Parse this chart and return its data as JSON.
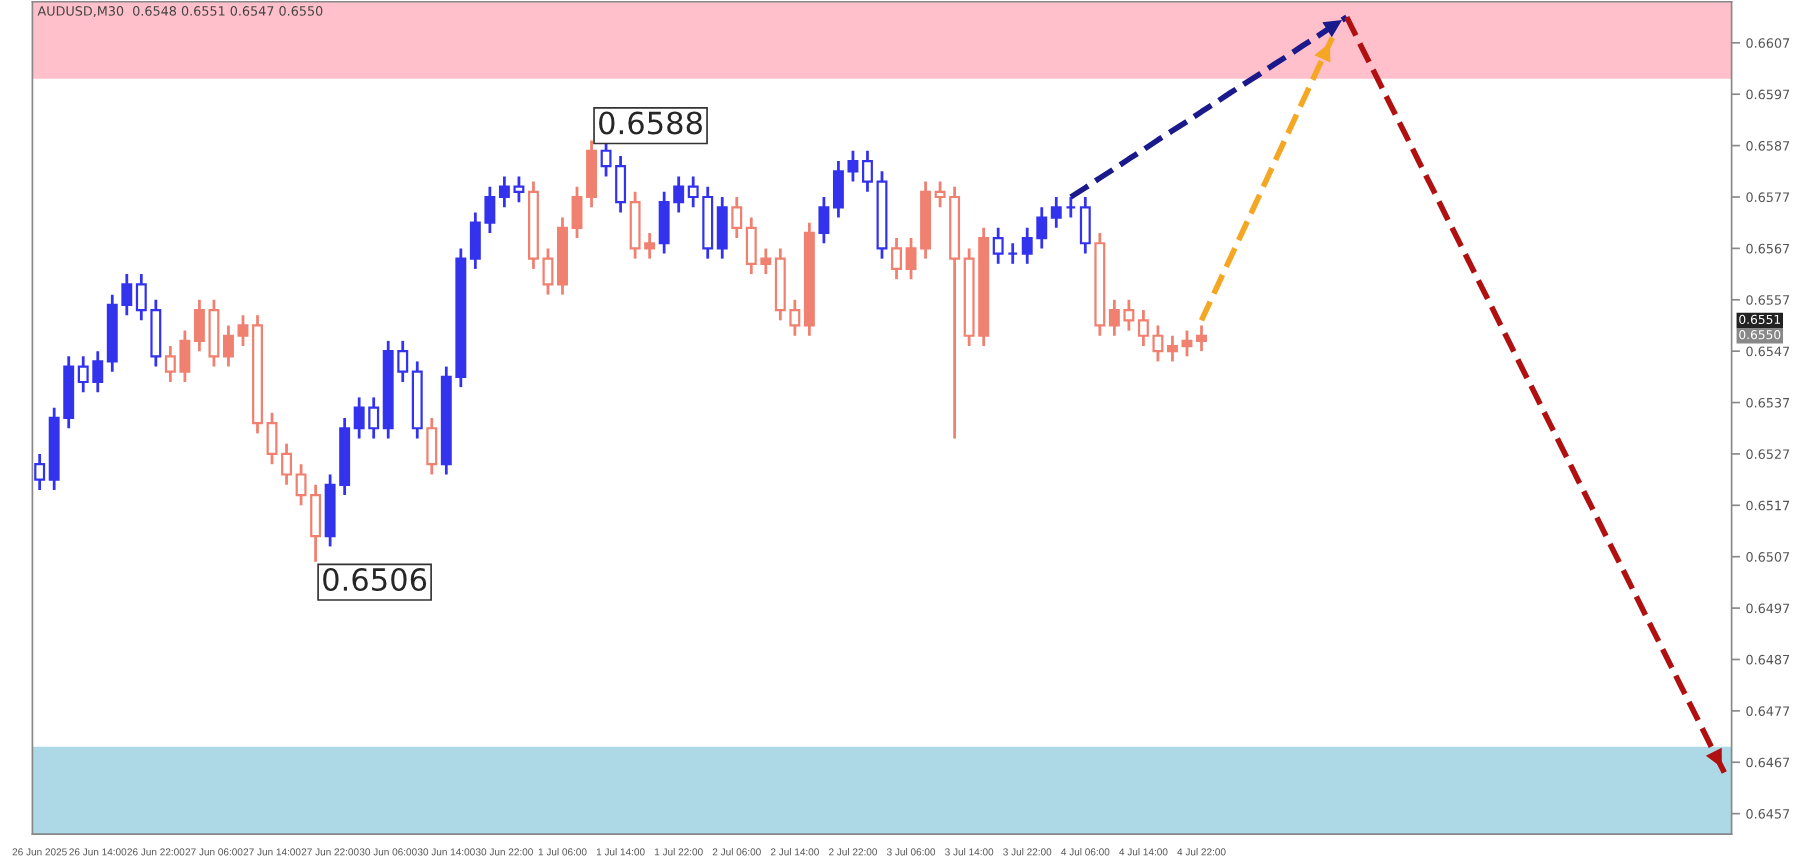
{
  "chart_data": {
    "type": "candlestick",
    "title": "AUDUSD,M30  0.6548 0.6551 0.6547 0.6550",
    "categories": [
      "26 Jun 2025",
      null,
      null,
      null,
      "26 Jun 14:00",
      null,
      null,
      null,
      "26 Jun 22:00",
      null,
      null,
      null,
      "27 Jun 06:00",
      null,
      null,
      null,
      "27 Jun 14:00",
      null,
      null,
      null,
      "27 Jun 22:00",
      null,
      null,
      null,
      "30 Jun 06:00",
      null,
      null,
      null,
      "30 Jun 14:00",
      null,
      null,
      null,
      "30 Jun 22:00",
      null,
      null,
      null,
      "1 Jul 06:00",
      null,
      null,
      null,
      "1 Jul 14:00",
      null,
      null,
      null,
      "1 Jul 22:00",
      null,
      null,
      null,
      "2 Jul 06:00",
      null,
      null,
      null,
      "2 Jul 14:00",
      null,
      null,
      null,
      "2 Jul 22:00",
      null,
      null,
      null,
      "3 Jul 06:00",
      null,
      null,
      null,
      "3 Jul 14:00",
      null,
      null,
      null,
      "3 Jul 22:00",
      null,
      null,
      null,
      "4 Jul 06:00",
      null,
      null,
      null,
      "4 Jul 14:00",
      null,
      null,
      null,
      "4 Jul 22:00",
      null,
      null,
      null,
      null,
      null,
      null,
      null,
      null,
      null,
      null,
      null,
      null,
      null,
      null,
      null,
      null,
      null,
      null,
      null,
      null,
      null,
      null,
      null,
      null,
      null,
      null,
      null,
      null,
      null,
      null,
      null,
      null,
      null,
      null,
      null,
      null
    ],
    "ylim": [
      0.6453,
      0.6615
    ],
    "yticks": [
      0.6607,
      0.6597,
      0.6587,
      0.6577,
      0.6567,
      0.6557,
      0.6547,
      0.6537,
      0.6527,
      0.6517,
      0.6507,
      0.6497,
      0.6487,
      0.6477,
      0.6467,
      0.6457
    ],
    "grid": false,
    "bands": [
      {
        "axis": "y",
        "from": 0.66,
        "to": 0.6615,
        "color": "#ffc0cb"
      },
      {
        "axis": "y",
        "from": 0.6453,
        "to": 0.647,
        "color": "#add8e6"
      }
    ],
    "annotations": [
      "0.6588",
      "0.6506",
      "0.6551",
      "0.6550"
    ],
    "ohlc": [
      [
        0.6525,
        0.6527,
        0.652,
        0.6522
      ],
      [
        0.6522,
        0.6536,
        0.652,
        0.6534
      ],
      [
        0.6534,
        0.6546,
        0.6532,
        0.6544
      ],
      [
        0.6544,
        0.6546,
        0.6539,
        0.6541
      ],
      [
        0.6541,
        0.6547,
        0.6539,
        0.6545
      ],
      [
        0.6545,
        0.6558,
        0.6543,
        0.6556
      ],
      [
        0.6556,
        0.6562,
        0.6554,
        0.656
      ],
      [
        0.656,
        0.6562,
        0.6553,
        0.6555
      ],
      [
        0.6555,
        0.6557,
        0.6544,
        0.6546
      ],
      [
        0.6546,
        0.6548,
        0.6541,
        0.6543
      ],
      [
        0.6543,
        0.6551,
        0.6541,
        0.6549
      ],
      [
        0.6549,
        0.6557,
        0.6547,
        0.6555
      ],
      [
        0.6555,
        0.6557,
        0.6544,
        0.6546
      ],
      [
        0.6546,
        0.6552,
        0.6544,
        0.655
      ],
      [
        0.655,
        0.6554,
        0.6548,
        0.6552
      ],
      [
        0.6552,
        0.6554,
        0.6531,
        0.6533
      ],
      [
        0.6533,
        0.6535,
        0.6525,
        0.6527
      ],
      [
        0.6527,
        0.6529,
        0.6521,
        0.6523
      ],
      [
        0.6523,
        0.6525,
        0.6517,
        0.6519
      ],
      [
        0.6519,
        0.6521,
        0.6506,
        0.6511
      ],
      [
        0.6511,
        0.6523,
        0.6509,
        0.6521
      ],
      [
        0.6521,
        0.6534,
        0.6519,
        0.6532
      ],
      [
        0.6532,
        0.6538,
        0.653,
        0.6536
      ],
      [
        0.6536,
        0.6538,
        0.653,
        0.6532
      ],
      [
        0.6532,
        0.6549,
        0.653,
        0.6547
      ],
      [
        0.6547,
        0.6549,
        0.6541,
        0.6543
      ],
      [
        0.6543,
        0.6545,
        0.653,
        0.6532
      ],
      [
        0.6532,
        0.6534,
        0.6523,
        0.6525
      ],
      [
        0.6525,
        0.6544,
        0.6523,
        0.6542
      ],
      [
        0.6542,
        0.6567,
        0.654,
        0.6565
      ],
      [
        0.6565,
        0.6574,
        0.6563,
        0.6572
      ],
      [
        0.6572,
        0.6579,
        0.657,
        0.6577
      ],
      [
        0.6577,
        0.6581,
        0.6575,
        0.6579
      ],
      [
        0.6579,
        0.6581,
        0.6576,
        0.6578
      ],
      [
        0.6578,
        0.658,
        0.6563,
        0.6565
      ],
      [
        0.6565,
        0.6567,
        0.6558,
        0.656
      ],
      [
        0.656,
        0.6573,
        0.6558,
        0.6571
      ],
      [
        0.6571,
        0.6579,
        0.6569,
        0.6577
      ],
      [
        0.6577,
        0.6588,
        0.6575,
        0.6586
      ],
      [
        0.6586,
        0.6588,
        0.6581,
        0.6583
      ],
      [
        0.6583,
        0.6585,
        0.6574,
        0.6576
      ],
      [
        0.6576,
        0.6578,
        0.6565,
        0.6567
      ],
      [
        0.6567,
        0.657,
        0.6565,
        0.6568
      ],
      [
        0.6568,
        0.6578,
        0.6566,
        0.6576
      ],
      [
        0.6576,
        0.6581,
        0.6574,
        0.6579
      ],
      [
        0.6579,
        0.6581,
        0.6575,
        0.6577
      ],
      [
        0.6577,
        0.6579,
        0.6565,
        0.6567
      ],
      [
        0.6567,
        0.6577,
        0.6565,
        0.6575
      ],
      [
        0.6575,
        0.6577,
        0.6569,
        0.6571
      ],
      [
        0.6571,
        0.6573,
        0.6562,
        0.6564
      ],
      [
        0.6564,
        0.6567,
        0.6562,
        0.6565
      ],
      [
        0.6565,
        0.6567,
        0.6553,
        0.6555
      ],
      [
        0.6555,
        0.6557,
        0.655,
        0.6552
      ],
      [
        0.6552,
        0.6572,
        0.655,
        0.657
      ],
      [
        0.657,
        0.6577,
        0.6568,
        0.6575
      ],
      [
        0.6575,
        0.6584,
        0.6573,
        0.6582
      ],
      [
        0.6582,
        0.6586,
        0.658,
        0.6584
      ],
      [
        0.6584,
        0.6586,
        0.6578,
        0.658
      ],
      [
        0.658,
        0.6582,
        0.6565,
        0.6567
      ],
      [
        0.6567,
        0.6569,
        0.6561,
        0.6563
      ],
      [
        0.6563,
        0.6569,
        0.6561,
        0.6567
      ],
      [
        0.6567,
        0.658,
        0.6565,
        0.6578
      ],
      [
        0.6578,
        0.658,
        0.6575,
        0.6577
      ],
      [
        0.6577,
        0.6579,
        0.653,
        0.6565
      ],
      [
        0.6565,
        0.6567,
        0.6548,
        0.655
      ],
      [
        0.655,
        0.6571,
        0.6548,
        0.6569
      ],
      [
        0.6569,
        0.6571,
        0.6564,
        0.6566
      ],
      [
        0.6566,
        0.6568,
        0.6564,
        0.6566
      ],
      [
        0.6566,
        0.6571,
        0.6564,
        0.6569
      ],
      [
        0.6569,
        0.6575,
        0.6567,
        0.6573
      ],
      [
        0.6573,
        0.6577,
        0.6571,
        0.6575
      ],
      [
        0.6575,
        0.6577,
        0.6573,
        0.6575
      ],
      [
        0.6575,
        0.6577,
        0.6566,
        0.6568
      ],
      [
        0.6568,
        0.657,
        0.655,
        0.6552
      ],
      [
        0.6552,
        0.6557,
        0.655,
        0.6555
      ],
      [
        0.6555,
        0.6557,
        0.6551,
        0.6553
      ],
      [
        0.6553,
        0.6555,
        0.6548,
        0.655
      ],
      [
        0.655,
        0.6552,
        0.6545,
        0.6547
      ],
      [
        0.6547,
        0.655,
        0.6545,
        0.6548
      ],
      [
        0.6548,
        0.6551,
        0.6546,
        0.6549
      ],
      [
        0.6549,
        0.6552,
        0.6547,
        0.655
      ],
      null,
      null,
      null,
      null,
      null,
      null,
      null,
      null,
      null,
      null,
      null,
      null,
      null,
      null,
      null,
      null,
      null,
      null,
      null,
      null,
      null,
      null,
      null,
      null,
      null,
      null,
      null,
      null,
      null,
      null,
      null,
      null,
      null,
      null,
      null,
      null
    ],
    "colors": [
      "#3333ee",
      "#3333ee",
      "#3333ee",
      "#3333ee",
      "#3333ee",
      "#3333ee",
      "#3333ee",
      "#3333ee",
      "#3333ee",
      "#f08070",
      "#f08070",
      "#f08070",
      "#f08070",
      "#f08070",
      "#f08070",
      "#f08070",
      "#f08070",
      "#f08070",
      "#f08070",
      "#f08070",
      "#3333ee",
      "#3333ee",
      "#3333ee",
      "#3333ee",
      "#3333ee",
      "#3333ee",
      "#3333ee",
      "#f08070",
      "#3333ee",
      "#3333ee",
      "#3333ee",
      "#3333ee",
      "#3333ee",
      "#3333ee",
      "#f08070",
      "#f08070",
      "#f08070",
      "#f08070",
      "#f08070",
      "#3333ee",
      "#3333ee",
      "#f08070",
      "#f08070",
      "#3333ee",
      "#3333ee",
      "#3333ee",
      "#3333ee",
      "#3333ee",
      "#f08070",
      "#f08070",
      "#f08070",
      "#f08070",
      "#f08070",
      "#f08070",
      "#3333ee",
      "#3333ee",
      "#3333ee",
      "#3333ee",
      "#3333ee",
      "#f08070",
      "#f08070",
      "#f08070",
      "#f08070",
      "#f08070",
      "#f08070",
      "#f08070",
      "#3333ee",
      "#3333ee",
      "#3333ee",
      "#3333ee",
      "#3333ee",
      "#3333ee",
      "#3333ee",
      "#f08070",
      "#f08070",
      "#f08070",
      "#f08070",
      "#f08070",
      "#f08070",
      "#f08070",
      "#f08070",
      null,
      null,
      null,
      null,
      null,
      null,
      null,
      null,
      null,
      null,
      null,
      null,
      null,
      null,
      null,
      null,
      null,
      null,
      null,
      null,
      null,
      null,
      null,
      null,
      null,
      null,
      null,
      null,
      null,
      null,
      null,
      null,
      null,
      null,
      null,
      null
    ],
    "series": [
      {
        "type": "line",
        "color": "#1a1a8c",
        "line_style": "dashed",
        "values": [
          null,
          null,
          null,
          null,
          null,
          null,
          null,
          null,
          null,
          null,
          null,
          null,
          null,
          null,
          null,
          null,
          null,
          null,
          null,
          null,
          null,
          null,
          null,
          null,
          null,
          null,
          null,
          null,
          null,
          null,
          null,
          null,
          null,
          null,
          null,
          null,
          null,
          null,
          null,
          null,
          null,
          null,
          null,
          null,
          null,
          null,
          null,
          null,
          null,
          null,
          null,
          null,
          null,
          null,
          null,
          null,
          null,
          null,
          null,
          null,
          null,
          null,
          null,
          null,
          null,
          null,
          null,
          null,
          null,
          null,
          null,
          0.6577,
          0.65788,
          0.65807,
          0.65825,
          0.65844,
          0.65862,
          0.65881,
          0.65899,
          0.65917,
          0.65936,
          0.65954,
          0.65973,
          0.65991,
          0.66009,
          0.66028,
          0.66046,
          0.66065,
          0.66083,
          0.66102,
          0.6612,
          null,
          null,
          null,
          null,
          null,
          null,
          null,
          null,
          null,
          null,
          null,
          null,
          null,
          null,
          null,
          null,
          null,
          null,
          null,
          null,
          null,
          null,
          null,
          null,
          null,
          null
        ]
      },
      {
        "type": "line",
        "color": "#f5a623",
        "line_style": "dashed",
        "values": [
          null,
          null,
          null,
          null,
          null,
          null,
          null,
          null,
          null,
          null,
          null,
          null,
          null,
          null,
          null,
          null,
          null,
          null,
          null,
          null,
          null,
          null,
          null,
          null,
          null,
          null,
          null,
          null,
          null,
          null,
          null,
          null,
          null,
          null,
          null,
          null,
          null,
          null,
          null,
          null,
          null,
          null,
          null,
          null,
          null,
          null,
          null,
          null,
          null,
          null,
          null,
          null,
          null,
          null,
          null,
          null,
          null,
          null,
          null,
          null,
          null,
          null,
          null,
          null,
          null,
          null,
          null,
          null,
          null,
          null,
          null,
          null,
          null,
          null,
          null,
          null,
          null,
          null,
          null,
          null,
          0.6553,
          0.65591,
          0.65652,
          0.65713,
          0.65774,
          0.65836,
          0.65897,
          0.65958,
          0.66019,
          0.6608,
          null,
          null,
          null,
          null,
          null,
          null,
          null,
          null,
          null,
          null,
          null,
          null,
          null,
          null,
          null,
          null,
          null,
          null,
          null,
          null,
          null,
          null,
          null,
          null,
          null,
          null,
          null
        ]
      },
      {
        "type": "line",
        "color": "#b01010",
        "line_style": "dashed",
        "values": [
          null,
          null,
          null,
          null,
          null,
          null,
          null,
          null,
          null,
          null,
          null,
          null,
          null,
          null,
          null,
          null,
          null,
          null,
          null,
          null,
          null,
          null,
          null,
          null,
          null,
          null,
          null,
          null,
          null,
          null,
          null,
          null,
          null,
          null,
          null,
          null,
          null,
          null,
          null,
          null,
          null,
          null,
          null,
          null,
          null,
          null,
          null,
          null,
          null,
          null,
          null,
          null,
          null,
          null,
          null,
          null,
          null,
          null,
          null,
          null,
          null,
          null,
          null,
          null,
          null,
          null,
          null,
          null,
          null,
          null,
          null,
          null,
          null,
          null,
          null,
          null,
          null,
          null,
          null,
          null,
          null,
          null,
          null,
          null,
          null,
          null,
          null,
          null,
          null,
          null,
          0.6612,
          0.66063,
          0.66007,
          0.6595,
          0.65894,
          0.65837,
          0.65781,
          0.65724,
          0.65668,
          0.65611,
          0.65555,
          0.65498,
          0.65441,
          0.65385,
          0.65328,
          0.65272,
          0.65215,
          0.65159,
          0.65102,
          0.65046,
          0.64989,
          0.64932,
          0.64876,
          0.64819,
          0.64763,
          0.64706,
          0.6465
        ]
      }
    ]
  }
}
